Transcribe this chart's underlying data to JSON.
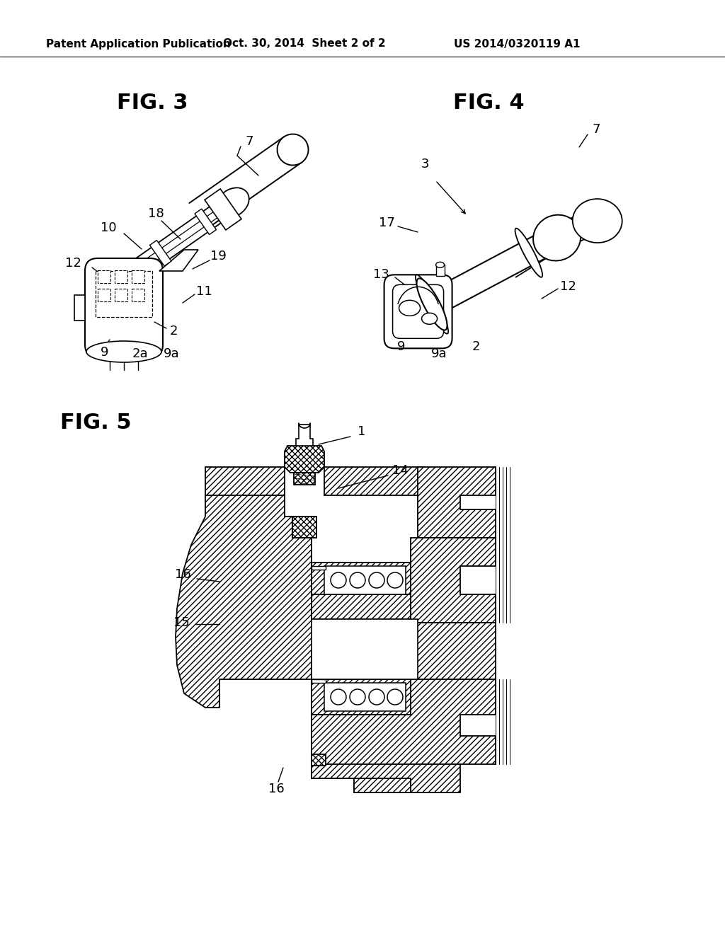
{
  "bg_color": "#ffffff",
  "header_text": "Patent Application Publication",
  "header_date": "Oct. 30, 2014  Sheet 2 of 2",
  "header_patent": "US 2014/0320119 A1",
  "fig3_title": "FIG. 3",
  "fig4_title": "FIG. 4",
  "fig5_title": "FIG. 5",
  "title_fontsize": 22,
  "label_fontsize": 13,
  "header_fontsize": 11
}
